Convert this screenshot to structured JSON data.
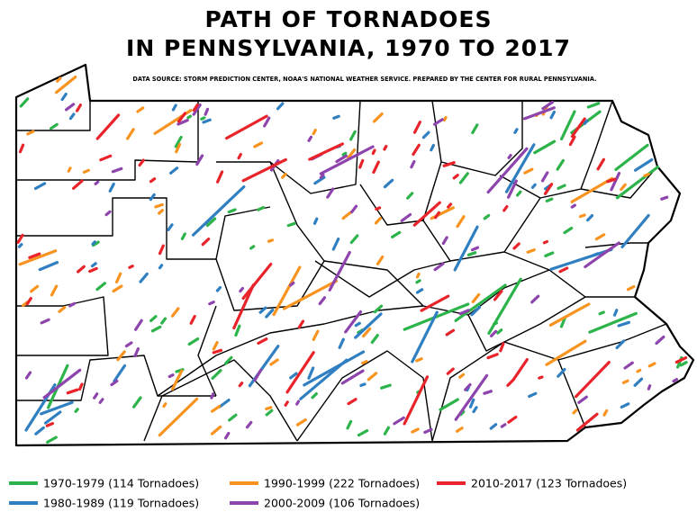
{
  "title": [
    "PATH OF TORNADOES",
    "IN PENNSYLVANIA, 1970 TO 2017"
  ],
  "source": "DATA SOURCE: STORM PREDICTION CENTER, NOAA'S NATIONAL WEATHER SERVICE. PREPARED BY THE CENTER FOR RURAL PENNSYLVANIA.",
  "legend": [
    {
      "label": "1970-1979 (114 Tornadoes)",
      "color": "#2cb34a"
    },
    {
      "label": "1980-1989 (119 Tornadoes)",
      "color": "#2f7fc1"
    },
    {
      "label": "1990-1999 (222 Tornadoes)",
      "color": "#f7931e"
    },
    {
      "label": "2000-2009 (106 Tornadoes)",
      "color": "#8e44ad"
    },
    {
      "label": "2010-2017 (123 Tornadoes)",
      "color": "#e8232a"
    }
  ]
}
